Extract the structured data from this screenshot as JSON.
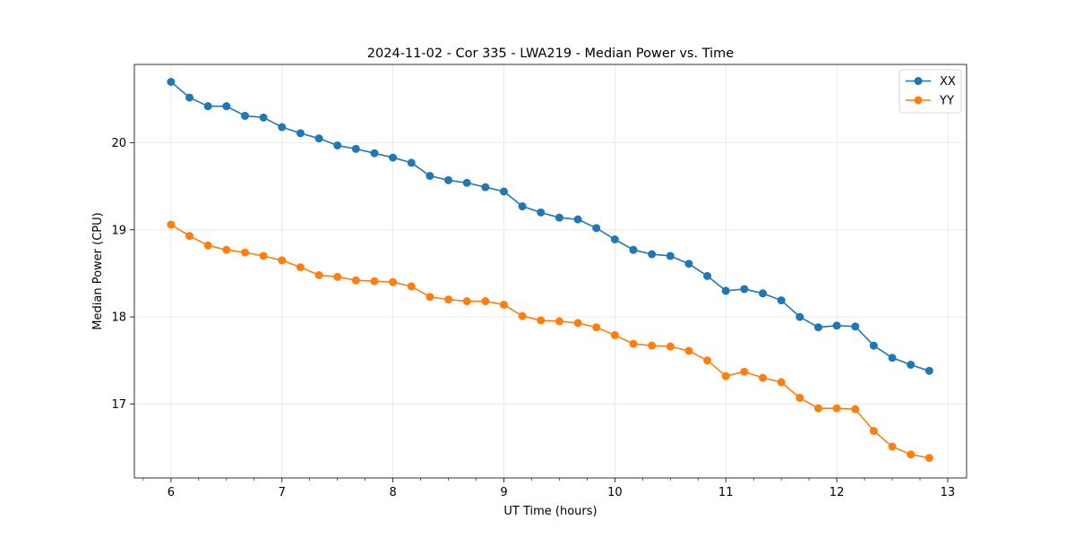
{
  "chart_data": {
    "type": "line",
    "title": "2024-11-02 - Cor 335 - LWA219 - Median Power vs. Time",
    "xlabel": "UT Time (hours)",
    "ylabel": "Median Power (CPU)",
    "xlim": [
      5.67,
      13.17
    ],
    "ylim": [
      16.15,
      20.9
    ],
    "xticks": [
      6,
      7,
      8,
      9,
      10,
      11,
      12,
      13
    ],
    "yticks": [
      17,
      18,
      19,
      20
    ],
    "grid": true,
    "legend_position": "top-right",
    "x": [
      6.0,
      6.1667,
      6.3333,
      6.5,
      6.6667,
      6.8333,
      7.0,
      7.1667,
      7.3333,
      7.5,
      7.6667,
      7.8333,
      8.0,
      8.1667,
      8.3333,
      8.5,
      8.6667,
      8.8333,
      9.0,
      9.1667,
      9.3333,
      9.5,
      9.6667,
      9.8333,
      10.0,
      10.1667,
      10.3333,
      10.5,
      10.6667,
      10.8333,
      11.0,
      11.1667,
      11.3333,
      11.5,
      11.6667,
      11.8333,
      12.0,
      12.1667,
      12.3333,
      12.5,
      12.6667,
      12.8333
    ],
    "series": [
      {
        "name": "XX",
        "color": "#1f77b4",
        "values": [
          20.7,
          20.52,
          20.42,
          20.42,
          20.31,
          20.29,
          20.18,
          20.11,
          20.05,
          19.97,
          19.93,
          19.88,
          19.83,
          19.77,
          19.62,
          19.57,
          19.54,
          19.49,
          19.44,
          19.27,
          19.2,
          19.14,
          19.12,
          19.02,
          18.89,
          18.77,
          18.72,
          18.7,
          18.61,
          18.47,
          18.3,
          18.32,
          18.27,
          18.19,
          18.0,
          17.88,
          17.9,
          17.89,
          17.67,
          17.53,
          17.45,
          17.38
        ]
      },
      {
        "name": "YY",
        "color": "#ff7f0e",
        "values": [
          19.06,
          18.93,
          18.82,
          18.77,
          18.74,
          18.7,
          18.65,
          18.57,
          18.48,
          18.46,
          18.42,
          18.41,
          18.4,
          18.35,
          18.23,
          18.2,
          18.18,
          18.18,
          18.14,
          18.01,
          17.96,
          17.95,
          17.93,
          17.88,
          17.79,
          17.69,
          17.67,
          17.66,
          17.61,
          17.5,
          17.32,
          17.37,
          17.3,
          17.25,
          17.07,
          16.95,
          16.95,
          16.94,
          16.69,
          16.51,
          16.42,
          16.38
        ]
      }
    ]
  }
}
